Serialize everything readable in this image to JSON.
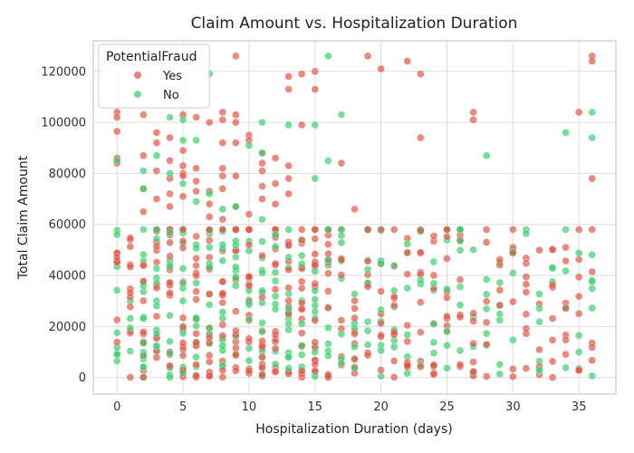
{
  "chart_data": {
    "type": "scatter",
    "title": "Claim Amount vs. Hospitalization Duration",
    "xlabel": "Hospitalization Duration (days)",
    "ylabel": "Total Claim Amount",
    "xlim": [
      -1.8,
      37.8
    ],
    "ylim": [
      -6500,
      132000
    ],
    "x_ticks": [
      0,
      5,
      10,
      15,
      20,
      25,
      30,
      35
    ],
    "y_ticks": [
      0,
      20000,
      40000,
      60000,
      80000,
      100000,
      120000
    ],
    "grid": true,
    "legend": {
      "title": "PotentialFraud",
      "placement": "top-left",
      "entries": [
        {
          "label": "Yes",
          "color": "#e0584a"
        },
        {
          "label": "No",
          "color": "#3fce72"
        }
      ]
    },
    "dense_band": {
      "x_min": 0,
      "x_max": 36,
      "y_min": 0,
      "y_max": 58000,
      "note_values_are_clipped_at": 58000
    },
    "series": [
      {
        "name": "Yes",
        "color": "#e0584a",
        "points": [
          [
            0,
            104000
          ],
          [
            0,
            102000
          ],
          [
            0,
            96500
          ],
          [
            0,
            86000
          ],
          [
            0,
            84000
          ],
          [
            2,
            103000
          ],
          [
            2,
            87000
          ],
          [
            2,
            74000
          ],
          [
            2,
            65000
          ],
          [
            3,
            96000
          ],
          [
            3,
            92000
          ],
          [
            3,
            81000
          ],
          [
            3,
            70000
          ],
          [
            4,
            94000
          ],
          [
            4,
            85000
          ],
          [
            4,
            78000
          ],
          [
            4,
            72000
          ],
          [
            4,
            67000
          ],
          [
            5,
            103000
          ],
          [
            5,
            89000
          ],
          [
            5,
            83000
          ],
          [
            5,
            80000
          ],
          [
            5,
            79000
          ],
          [
            5,
            71000
          ],
          [
            6,
            102000
          ],
          [
            6,
            82000
          ],
          [
            6,
            77000
          ],
          [
            6,
            73000
          ],
          [
            7,
            100000
          ],
          [
            7,
            73000
          ],
          [
            7,
            68000
          ],
          [
            7,
            63000
          ],
          [
            8,
            104000
          ],
          [
            8,
            101000
          ],
          [
            8,
            92000
          ],
          [
            8,
            82000
          ],
          [
            8,
            79000
          ],
          [
            8,
            74000
          ],
          [
            8,
            62000
          ],
          [
            9,
            126000
          ],
          [
            9,
            103000
          ],
          [
            9,
            100000
          ],
          [
            9,
            92000
          ],
          [
            9,
            79000
          ],
          [
            9,
            67000
          ],
          [
            10,
            95000
          ],
          [
            10,
            93000
          ],
          [
            10,
            64000
          ],
          [
            11,
            88000
          ],
          [
            11,
            84000
          ],
          [
            11,
            81000
          ],
          [
            11,
            75000
          ],
          [
            11,
            70000
          ],
          [
            12,
            86000
          ],
          [
            12,
            76000
          ],
          [
            12,
            68000
          ],
          [
            13,
            118000
          ],
          [
            13,
            113000
          ],
          [
            13,
            83000
          ],
          [
            13,
            78000
          ],
          [
            13,
            72000
          ],
          [
            14,
            119000
          ],
          [
            14,
            99000
          ],
          [
            15,
            120000
          ],
          [
            15,
            113000
          ],
          [
            17,
            84000
          ],
          [
            18,
            66000
          ],
          [
            19,
            126000
          ],
          [
            20,
            121000
          ],
          [
            22,
            124000
          ],
          [
            23,
            119000
          ],
          [
            23,
            94000
          ],
          [
            27,
            104000
          ],
          [
            27,
            101000
          ],
          [
            35,
            104000
          ],
          [
            36,
            126000
          ],
          [
            36,
            124000
          ],
          [
            36,
            78000
          ]
        ]
      },
      {
        "name": "No",
        "color": "#3fce72",
        "points": [
          [
            0,
            85000
          ],
          [
            0,
            17500
          ],
          [
            2,
            81000
          ],
          [
            2,
            74000
          ],
          [
            3,
            87000
          ],
          [
            4,
            102000
          ],
          [
            4,
            80000
          ],
          [
            5,
            101000
          ],
          [
            5,
            93000
          ],
          [
            5,
            76000
          ],
          [
            6,
            93000
          ],
          [
            6,
            69000
          ],
          [
            7,
            119000
          ],
          [
            7,
            72000
          ],
          [
            8,
            66000
          ],
          [
            9,
            67000
          ],
          [
            10,
            91000
          ],
          [
            11,
            100000
          ],
          [
            11,
            88000
          ],
          [
            11,
            62000
          ],
          [
            13,
            99000
          ],
          [
            15,
            99000
          ],
          [
            15,
            78000
          ],
          [
            16,
            126000
          ],
          [
            16,
            85000
          ],
          [
            17,
            103000
          ],
          [
            28,
            87000
          ],
          [
            34,
            96000
          ],
          [
            36,
            104000
          ],
          [
            36,
            94000
          ]
        ]
      }
    ]
  }
}
